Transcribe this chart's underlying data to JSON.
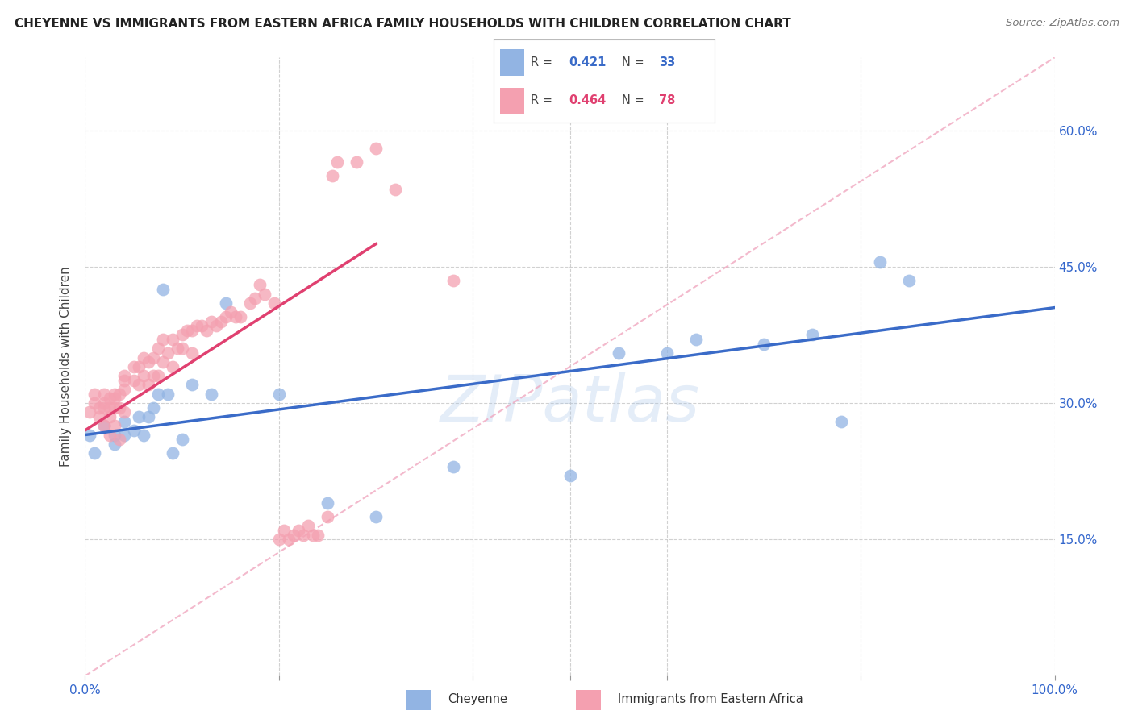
{
  "title": "CHEYENNE VS IMMIGRANTS FROM EASTERN AFRICA FAMILY HOUSEHOLDS WITH CHILDREN CORRELATION CHART",
  "source": "Source: ZipAtlas.com",
  "ylabel": "Family Households with Children",
  "legend_labels": [
    "Cheyenne",
    "Immigrants from Eastern Africa"
  ],
  "blue_R": "0.421",
  "blue_N": "33",
  "pink_R": "0.464",
  "pink_N": "78",
  "blue_color": "#92B4E3",
  "pink_color": "#F4A0B0",
  "blue_line_color": "#3A6BC8",
  "pink_line_color": "#E04070",
  "dashed_line_color": "#F0A8C0",
  "watermark": "ZIPatlas",
  "xlim": [
    0,
    1.0
  ],
  "ylim": [
    0,
    0.68
  ],
  "ytick_positions": [
    0.15,
    0.3,
    0.45,
    0.6
  ],
  "ytick_labels": [
    "15.0%",
    "30.0%",
    "45.0%",
    "60.0%"
  ],
  "blue_scatter_x": [
    0.005,
    0.01,
    0.02,
    0.03,
    0.03,
    0.04,
    0.04,
    0.05,
    0.055,
    0.06,
    0.065,
    0.07,
    0.075,
    0.08,
    0.085,
    0.09,
    0.1,
    0.11,
    0.13,
    0.145,
    0.2,
    0.25,
    0.3,
    0.38,
    0.5,
    0.55,
    0.6,
    0.63,
    0.7,
    0.75,
    0.78,
    0.82,
    0.85
  ],
  "blue_scatter_y": [
    0.265,
    0.245,
    0.275,
    0.265,
    0.255,
    0.28,
    0.265,
    0.27,
    0.285,
    0.265,
    0.285,
    0.295,
    0.31,
    0.425,
    0.31,
    0.245,
    0.26,
    0.32,
    0.31,
    0.41,
    0.31,
    0.19,
    0.175,
    0.23,
    0.22,
    0.355,
    0.355,
    0.37,
    0.365,
    0.375,
    0.28,
    0.455,
    0.435
  ],
  "pink_scatter_x": [
    0.005,
    0.01,
    0.01,
    0.015,
    0.015,
    0.02,
    0.02,
    0.02,
    0.02,
    0.025,
    0.025,
    0.025,
    0.025,
    0.03,
    0.03,
    0.03,
    0.03,
    0.035,
    0.035,
    0.035,
    0.04,
    0.04,
    0.04,
    0.04,
    0.05,
    0.05,
    0.055,
    0.055,
    0.06,
    0.06,
    0.065,
    0.065,
    0.07,
    0.07,
    0.075,
    0.075,
    0.08,
    0.08,
    0.085,
    0.09,
    0.09,
    0.095,
    0.1,
    0.1,
    0.105,
    0.11,
    0.11,
    0.115,
    0.12,
    0.125,
    0.13,
    0.135,
    0.14,
    0.145,
    0.15,
    0.155,
    0.16,
    0.17,
    0.175,
    0.18,
    0.185,
    0.195,
    0.2,
    0.205,
    0.21,
    0.215,
    0.22,
    0.225,
    0.23,
    0.235,
    0.24,
    0.25,
    0.255,
    0.26,
    0.28,
    0.3,
    0.32,
    0.38
  ],
  "pink_scatter_y": [
    0.29,
    0.31,
    0.3,
    0.295,
    0.285,
    0.31,
    0.3,
    0.295,
    0.275,
    0.305,
    0.295,
    0.285,
    0.265,
    0.31,
    0.305,
    0.295,
    0.275,
    0.31,
    0.295,
    0.26,
    0.33,
    0.325,
    0.315,
    0.29,
    0.34,
    0.325,
    0.34,
    0.32,
    0.35,
    0.33,
    0.345,
    0.32,
    0.35,
    0.33,
    0.36,
    0.33,
    0.37,
    0.345,
    0.355,
    0.37,
    0.34,
    0.36,
    0.375,
    0.36,
    0.38,
    0.38,
    0.355,
    0.385,
    0.385,
    0.38,
    0.39,
    0.385,
    0.39,
    0.395,
    0.4,
    0.395,
    0.395,
    0.41,
    0.415,
    0.43,
    0.42,
    0.41,
    0.15,
    0.16,
    0.15,
    0.155,
    0.16,
    0.155,
    0.165,
    0.155,
    0.155,
    0.175,
    0.55,
    0.565,
    0.565,
    0.58,
    0.535,
    0.435
  ],
  "blue_trendline_x": [
    0.0,
    1.0
  ],
  "blue_trendline_y": [
    0.265,
    0.405
  ],
  "pink_trendline_x": [
    0.0,
    0.3
  ],
  "pink_trendline_y": [
    0.27,
    0.475
  ],
  "dashed_line_x": [
    0.0,
    1.0
  ],
  "dashed_line_y": [
    0.0,
    0.68
  ]
}
